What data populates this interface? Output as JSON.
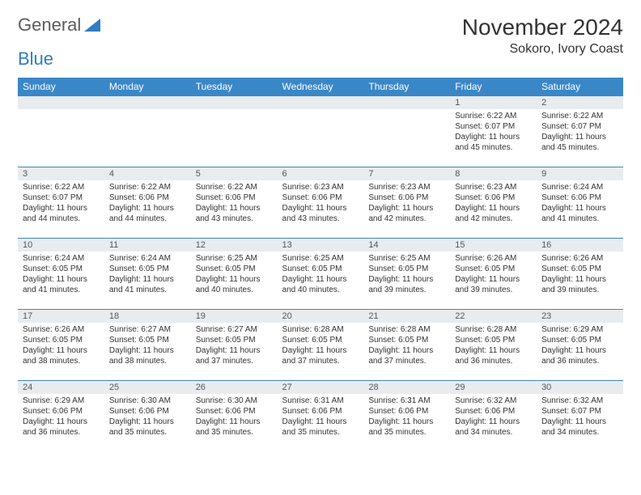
{
  "logo": {
    "text1": "General",
    "text2": "Blue",
    "text_color": "#5c5c5c",
    "accent_color": "#2f7dc0"
  },
  "title": "November 2024",
  "location": "Sokoro, Ivory Coast",
  "header_bg": "#3a87c7",
  "header_fg": "#ffffff",
  "daynum_bg": "#e9ecef",
  "border_color": "#3a87c7",
  "day_names": [
    "Sunday",
    "Monday",
    "Tuesday",
    "Wednesday",
    "Thursday",
    "Friday",
    "Saturday"
  ],
  "weeks": [
    [
      {
        "n": "",
        "sr": "",
        "ss": "",
        "dl": ""
      },
      {
        "n": "",
        "sr": "",
        "ss": "",
        "dl": ""
      },
      {
        "n": "",
        "sr": "",
        "ss": "",
        "dl": ""
      },
      {
        "n": "",
        "sr": "",
        "ss": "",
        "dl": ""
      },
      {
        "n": "",
        "sr": "",
        "ss": "",
        "dl": ""
      },
      {
        "n": "1",
        "sr": "Sunrise: 6:22 AM",
        "ss": "Sunset: 6:07 PM",
        "dl": "Daylight: 11 hours and 45 minutes."
      },
      {
        "n": "2",
        "sr": "Sunrise: 6:22 AM",
        "ss": "Sunset: 6:07 PM",
        "dl": "Daylight: 11 hours and 45 minutes."
      }
    ],
    [
      {
        "n": "3",
        "sr": "Sunrise: 6:22 AM",
        "ss": "Sunset: 6:07 PM",
        "dl": "Daylight: 11 hours and 44 minutes."
      },
      {
        "n": "4",
        "sr": "Sunrise: 6:22 AM",
        "ss": "Sunset: 6:06 PM",
        "dl": "Daylight: 11 hours and 44 minutes."
      },
      {
        "n": "5",
        "sr": "Sunrise: 6:22 AM",
        "ss": "Sunset: 6:06 PM",
        "dl": "Daylight: 11 hours and 43 minutes."
      },
      {
        "n": "6",
        "sr": "Sunrise: 6:23 AM",
        "ss": "Sunset: 6:06 PM",
        "dl": "Daylight: 11 hours and 43 minutes."
      },
      {
        "n": "7",
        "sr": "Sunrise: 6:23 AM",
        "ss": "Sunset: 6:06 PM",
        "dl": "Daylight: 11 hours and 42 minutes."
      },
      {
        "n": "8",
        "sr": "Sunrise: 6:23 AM",
        "ss": "Sunset: 6:06 PM",
        "dl": "Daylight: 11 hours and 42 minutes."
      },
      {
        "n": "9",
        "sr": "Sunrise: 6:24 AM",
        "ss": "Sunset: 6:06 PM",
        "dl": "Daylight: 11 hours and 41 minutes."
      }
    ],
    [
      {
        "n": "10",
        "sr": "Sunrise: 6:24 AM",
        "ss": "Sunset: 6:05 PM",
        "dl": "Daylight: 11 hours and 41 minutes."
      },
      {
        "n": "11",
        "sr": "Sunrise: 6:24 AM",
        "ss": "Sunset: 6:05 PM",
        "dl": "Daylight: 11 hours and 41 minutes."
      },
      {
        "n": "12",
        "sr": "Sunrise: 6:25 AM",
        "ss": "Sunset: 6:05 PM",
        "dl": "Daylight: 11 hours and 40 minutes."
      },
      {
        "n": "13",
        "sr": "Sunrise: 6:25 AM",
        "ss": "Sunset: 6:05 PM",
        "dl": "Daylight: 11 hours and 40 minutes."
      },
      {
        "n": "14",
        "sr": "Sunrise: 6:25 AM",
        "ss": "Sunset: 6:05 PM",
        "dl": "Daylight: 11 hours and 39 minutes."
      },
      {
        "n": "15",
        "sr": "Sunrise: 6:26 AM",
        "ss": "Sunset: 6:05 PM",
        "dl": "Daylight: 11 hours and 39 minutes."
      },
      {
        "n": "16",
        "sr": "Sunrise: 6:26 AM",
        "ss": "Sunset: 6:05 PM",
        "dl": "Daylight: 11 hours and 39 minutes."
      }
    ],
    [
      {
        "n": "17",
        "sr": "Sunrise: 6:26 AM",
        "ss": "Sunset: 6:05 PM",
        "dl": "Daylight: 11 hours and 38 minutes."
      },
      {
        "n": "18",
        "sr": "Sunrise: 6:27 AM",
        "ss": "Sunset: 6:05 PM",
        "dl": "Daylight: 11 hours and 38 minutes."
      },
      {
        "n": "19",
        "sr": "Sunrise: 6:27 AM",
        "ss": "Sunset: 6:05 PM",
        "dl": "Daylight: 11 hours and 37 minutes."
      },
      {
        "n": "20",
        "sr": "Sunrise: 6:28 AM",
        "ss": "Sunset: 6:05 PM",
        "dl": "Daylight: 11 hours and 37 minutes."
      },
      {
        "n": "21",
        "sr": "Sunrise: 6:28 AM",
        "ss": "Sunset: 6:05 PM",
        "dl": "Daylight: 11 hours and 37 minutes."
      },
      {
        "n": "22",
        "sr": "Sunrise: 6:28 AM",
        "ss": "Sunset: 6:05 PM",
        "dl": "Daylight: 11 hours and 36 minutes."
      },
      {
        "n": "23",
        "sr": "Sunrise: 6:29 AM",
        "ss": "Sunset: 6:05 PM",
        "dl": "Daylight: 11 hours and 36 minutes."
      }
    ],
    [
      {
        "n": "24",
        "sr": "Sunrise: 6:29 AM",
        "ss": "Sunset: 6:06 PM",
        "dl": "Daylight: 11 hours and 36 minutes."
      },
      {
        "n": "25",
        "sr": "Sunrise: 6:30 AM",
        "ss": "Sunset: 6:06 PM",
        "dl": "Daylight: 11 hours and 35 minutes."
      },
      {
        "n": "26",
        "sr": "Sunrise: 6:30 AM",
        "ss": "Sunset: 6:06 PM",
        "dl": "Daylight: 11 hours and 35 minutes."
      },
      {
        "n": "27",
        "sr": "Sunrise: 6:31 AM",
        "ss": "Sunset: 6:06 PM",
        "dl": "Daylight: 11 hours and 35 minutes."
      },
      {
        "n": "28",
        "sr": "Sunrise: 6:31 AM",
        "ss": "Sunset: 6:06 PM",
        "dl": "Daylight: 11 hours and 35 minutes."
      },
      {
        "n": "29",
        "sr": "Sunrise: 6:32 AM",
        "ss": "Sunset: 6:06 PM",
        "dl": "Daylight: 11 hours and 34 minutes."
      },
      {
        "n": "30",
        "sr": "Sunrise: 6:32 AM",
        "ss": "Sunset: 6:07 PM",
        "dl": "Daylight: 11 hours and 34 minutes."
      }
    ]
  ]
}
